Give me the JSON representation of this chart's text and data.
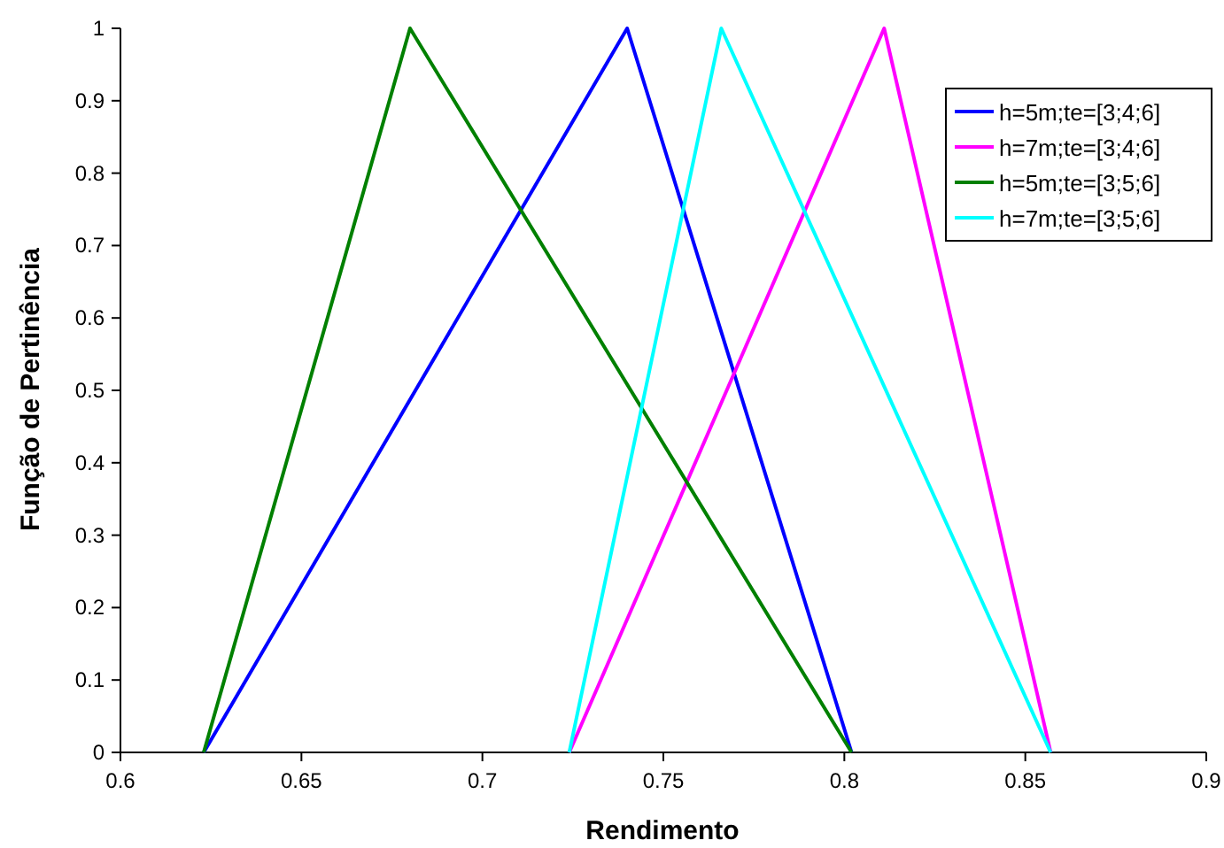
{
  "chart_data": {
    "type": "line",
    "xlabel": "Rendimento",
    "ylabel": "Função de Pertinência",
    "xlim": [
      0.6,
      0.9
    ],
    "xticks": [
      0.6,
      0.65,
      0.7,
      0.75,
      0.8,
      0.85,
      0.9
    ],
    "ylim": [
      0,
      1
    ],
    "yticks": [
      0,
      0.1,
      0.2,
      0.3,
      0.4,
      0.5,
      0.6,
      0.7,
      0.8,
      0.9,
      1
    ],
    "grid": false,
    "legend": "top right",
    "marker": "none",
    "line_style": "solid",
    "series": [
      {
        "name": "h=5m;te=[3;4;6]",
        "color": "#0000ff",
        "x": [
          0.623,
          0.74,
          0.802
        ],
        "values": [
          0,
          1,
          0
        ]
      },
      {
        "name": "h=7m;te=[3;4;6]",
        "color": "#ff00ff",
        "x": [
          0.724,
          0.811,
          0.857
        ],
        "values": [
          0,
          1,
          0
        ]
      },
      {
        "name": "h=5m;te=[3;5;6]",
        "color": "#008000",
        "x": [
          0.623,
          0.68,
          0.802
        ],
        "values": [
          0,
          1,
          0
        ]
      },
      {
        "name": "h=7m;te=[3;5;6]",
        "color": "#00ffff",
        "x": [
          0.724,
          0.766,
          0.857
        ],
        "values": [
          0,
          1,
          0
        ]
      }
    ]
  }
}
